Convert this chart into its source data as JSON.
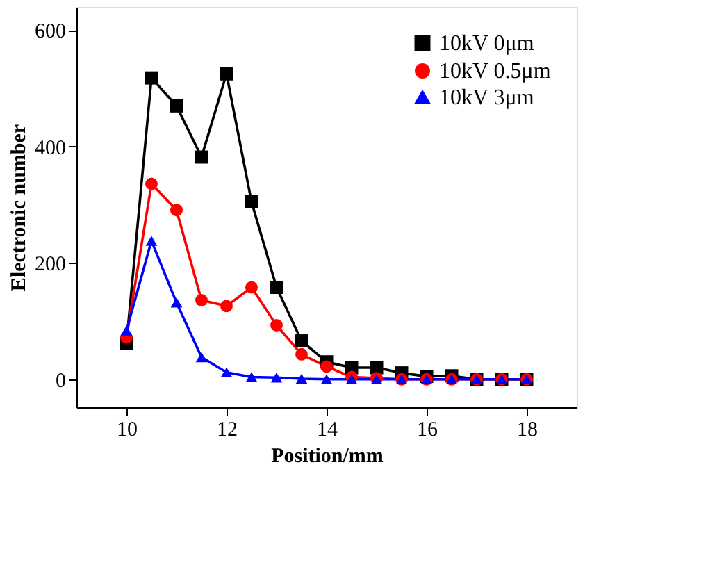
{
  "chart_data": {
    "type": "line",
    "xlabel": "Position/mm",
    "ylabel": "Electronic number",
    "x": [
      10,
      10.5,
      11,
      11.5,
      12,
      12.5,
      13,
      13.5,
      14,
      14.5,
      15,
      15.5,
      16,
      16.5,
      17,
      17.5,
      18
    ],
    "series": [
      {
        "name": "10kV 0μm",
        "color": "#000000",
        "marker": "square",
        "values": [
          62,
          518,
          470,
          382,
          525,
          305,
          158,
          66,
          30,
          20,
          20,
          11,
          5,
          6,
          0,
          0,
          0
        ]
      },
      {
        "name": "10kV 0.5μm",
        "color": "#ff0000",
        "marker": "circle",
        "values": [
          72,
          336,
          291,
          136,
          126,
          158,
          93,
          43,
          22,
          4,
          2,
          0,
          0,
          0,
          0,
          0,
          0
        ]
      },
      {
        "name": "10kV 3μm",
        "color": "#0000ff",
        "marker": "triangle",
        "values": [
          84,
          238,
          132,
          38,
          12,
          4,
          3,
          1,
          0,
          0,
          0,
          0,
          0,
          0,
          0,
          0,
          0
        ]
      }
    ],
    "xlim": [
      9,
      19
    ],
    "xticks": [
      10,
      12,
      14,
      16,
      18
    ],
    "ylim": [
      -48,
      640
    ],
    "yticks": [
      0,
      200,
      400,
      600
    ],
    "grid": false,
    "legend": "top right",
    "line_style": "solid"
  }
}
